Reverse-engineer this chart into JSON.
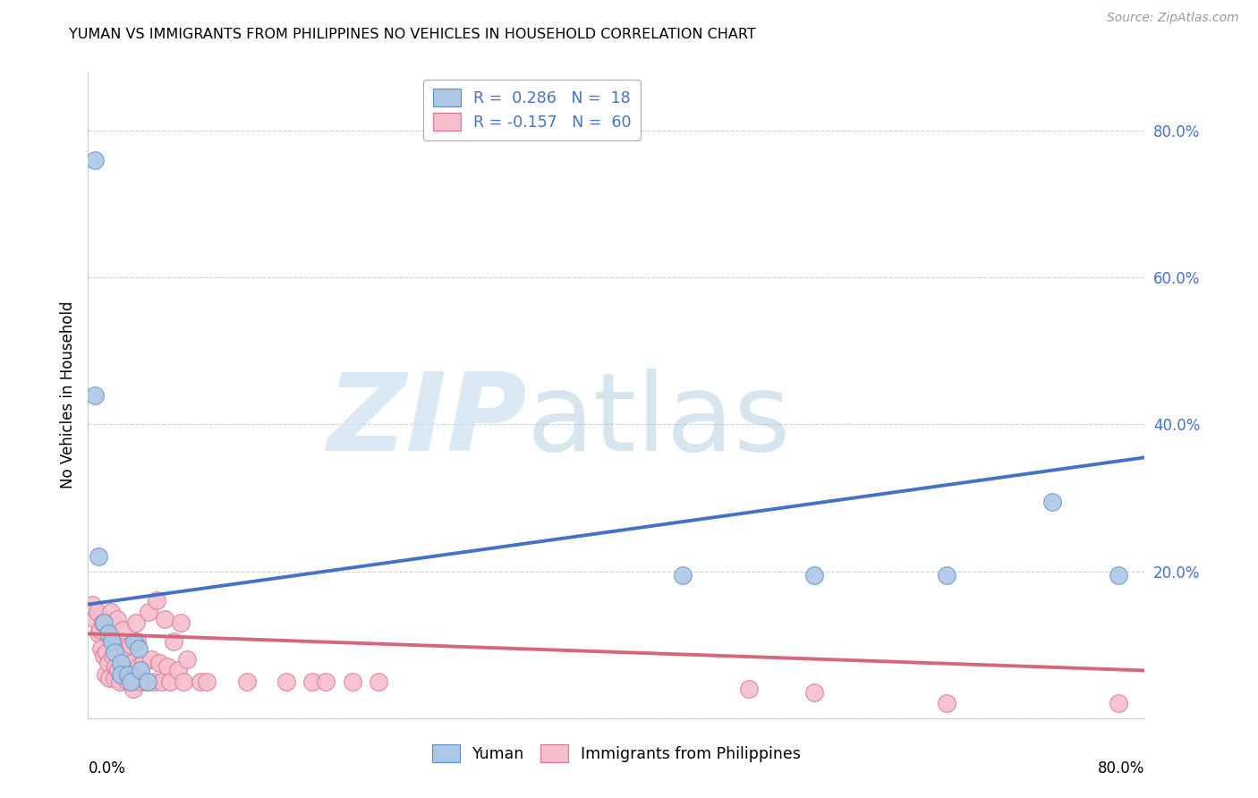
{
  "title": "YUMAN VS IMMIGRANTS FROM PHILIPPINES NO VEHICLES IN HOUSEHOLD CORRELATION CHART",
  "source": "Source: ZipAtlas.com",
  "ylabel": "No Vehicles in Household",
  "xlim": [
    0.0,
    0.8
  ],
  "ylim": [
    0.0,
    0.88
  ],
  "blue_scatter": [
    [
      0.005,
      0.76
    ],
    [
      0.005,
      0.44
    ],
    [
      0.008,
      0.22
    ],
    [
      0.012,
      0.13
    ],
    [
      0.015,
      0.115
    ],
    [
      0.018,
      0.105
    ],
    [
      0.02,
      0.09
    ],
    [
      0.025,
      0.075
    ],
    [
      0.025,
      0.06
    ],
    [
      0.03,
      0.06
    ],
    [
      0.032,
      0.05
    ],
    [
      0.035,
      0.105
    ],
    [
      0.038,
      0.095
    ],
    [
      0.04,
      0.065
    ],
    [
      0.045,
      0.05
    ],
    [
      0.45,
      0.195
    ],
    [
      0.55,
      0.195
    ],
    [
      0.65,
      0.195
    ],
    [
      0.73,
      0.295
    ],
    [
      0.78,
      0.195
    ]
  ],
  "pink_scatter": [
    [
      0.003,
      0.155
    ],
    [
      0.005,
      0.135
    ],
    [
      0.007,
      0.145
    ],
    [
      0.008,
      0.115
    ],
    [
      0.009,
      0.12
    ],
    [
      0.01,
      0.095
    ],
    [
      0.011,
      0.13
    ],
    [
      0.012,
      0.085
    ],
    [
      0.013,
      0.06
    ],
    [
      0.014,
      0.09
    ],
    [
      0.015,
      0.075
    ],
    [
      0.016,
      0.055
    ],
    [
      0.017,
      0.145
    ],
    [
      0.018,
      0.11
    ],
    [
      0.019,
      0.085
    ],
    [
      0.02,
      0.055
    ],
    [
      0.021,
      0.07
    ],
    [
      0.022,
      0.135
    ],
    [
      0.023,
      0.065
    ],
    [
      0.024,
      0.05
    ],
    [
      0.026,
      0.12
    ],
    [
      0.027,
      0.065
    ],
    [
      0.028,
      0.095
    ],
    [
      0.029,
      0.08
    ],
    [
      0.03,
      0.05
    ],
    [
      0.032,
      0.1
    ],
    [
      0.033,
      0.075
    ],
    [
      0.034,
      0.04
    ],
    [
      0.036,
      0.13
    ],
    [
      0.037,
      0.105
    ],
    [
      0.038,
      0.07
    ],
    [
      0.04,
      0.05
    ],
    [
      0.042,
      0.075
    ],
    [
      0.044,
      0.05
    ],
    [
      0.046,
      0.145
    ],
    [
      0.048,
      0.08
    ],
    [
      0.05,
      0.05
    ],
    [
      0.052,
      0.16
    ],
    [
      0.054,
      0.075
    ],
    [
      0.056,
      0.05
    ],
    [
      0.058,
      0.135
    ],
    [
      0.06,
      0.07
    ],
    [
      0.062,
      0.05
    ],
    [
      0.065,
      0.105
    ],
    [
      0.068,
      0.065
    ],
    [
      0.07,
      0.13
    ],
    [
      0.072,
      0.05
    ],
    [
      0.075,
      0.08
    ],
    [
      0.085,
      0.05
    ],
    [
      0.09,
      0.05
    ],
    [
      0.12,
      0.05
    ],
    [
      0.15,
      0.05
    ],
    [
      0.17,
      0.05
    ],
    [
      0.18,
      0.05
    ],
    [
      0.2,
      0.05
    ],
    [
      0.22,
      0.05
    ],
    [
      0.5,
      0.04
    ],
    [
      0.55,
      0.035
    ],
    [
      0.65,
      0.02
    ],
    [
      0.78,
      0.02
    ]
  ],
  "blue_line_x": [
    0.0,
    0.8
  ],
  "blue_line_y": [
    0.155,
    0.355
  ],
  "pink_line_x": [
    0.0,
    0.8
  ],
  "pink_line_y": [
    0.115,
    0.065
  ],
  "blue_color": "#adc8e6",
  "blue_edge_color": "#5b8ec4",
  "blue_line_color": "#4472c4",
  "pink_color": "#f5bfcc",
  "pink_edge_color": "#d87090",
  "pink_line_color": "#d4687a",
  "grid_color": "#d0d0d0",
  "background_color": "#ffffff"
}
